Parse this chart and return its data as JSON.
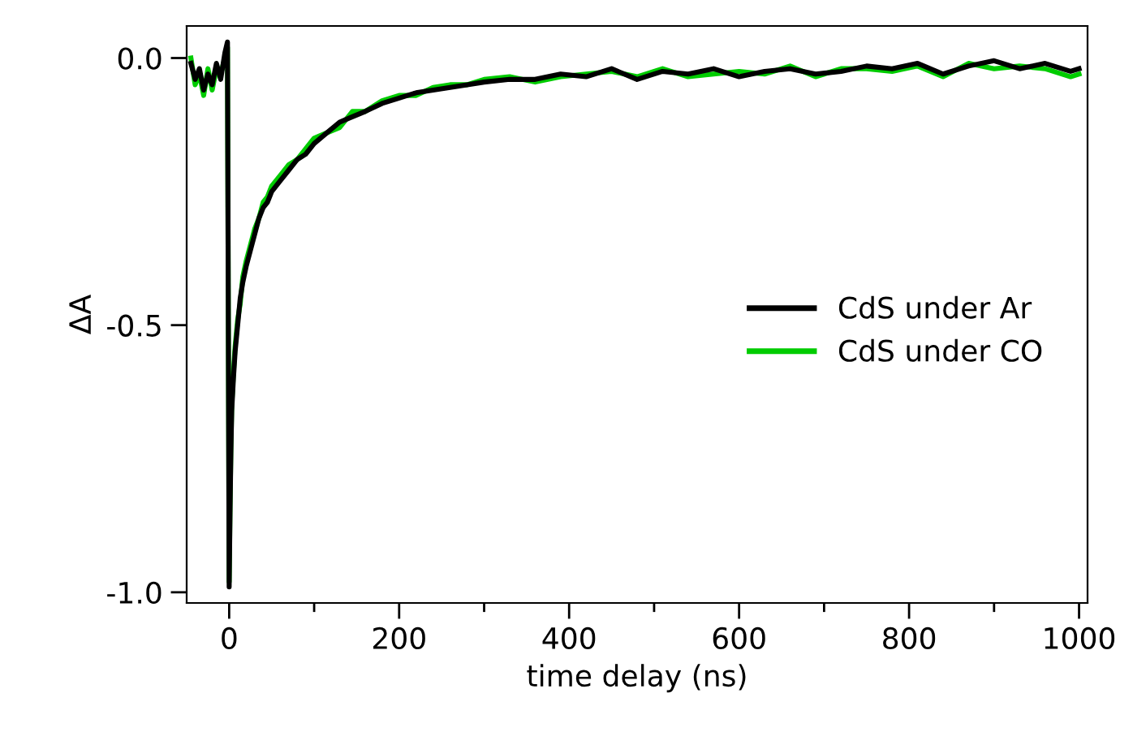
{
  "chart_data": {
    "type": "line",
    "xlabel": "time delay (ns)",
    "ylabel": "ΔA",
    "x": [
      -45,
      -40,
      -35,
      -30,
      -25,
      -20,
      -15,
      -10,
      -5,
      -2,
      0,
      1,
      2,
      3,
      5,
      7,
      10,
      13,
      16,
      20,
      25,
      30,
      35,
      40,
      45,
      50,
      60,
      70,
      80,
      90,
      100,
      115,
      130,
      145,
      160,
      180,
      200,
      220,
      240,
      260,
      280,
      300,
      330,
      360,
      390,
      420,
      450,
      480,
      510,
      540,
      570,
      600,
      630,
      660,
      690,
      720,
      750,
      780,
      810,
      840,
      870,
      900,
      930,
      960,
      990,
      1000
    ],
    "series": [
      {
        "name": "CdS under CO",
        "color": "#00cc00",
        "values": [
          0.0,
          -0.05,
          -0.03,
          -0.07,
          -0.02,
          -0.06,
          -0.02,
          -0.03,
          0.0,
          0.02,
          -0.98,
          -0.84,
          -0.73,
          -0.65,
          -0.59,
          -0.54,
          -0.49,
          -0.46,
          -0.41,
          -0.38,
          -0.35,
          -0.32,
          -0.3,
          -0.27,
          -0.26,
          -0.24,
          -0.22,
          -0.2,
          -0.19,
          -0.17,
          -0.15,
          -0.14,
          -0.13,
          -0.1,
          -0.1,
          -0.08,
          -0.07,
          -0.07,
          -0.055,
          -0.05,
          -0.05,
          -0.04,
          -0.035,
          -0.045,
          -0.035,
          -0.03,
          -0.025,
          -0.035,
          -0.02,
          -0.035,
          -0.03,
          -0.025,
          -0.03,
          -0.015,
          -0.035,
          -0.02,
          -0.02,
          -0.025,
          -0.015,
          -0.035,
          -0.01,
          -0.02,
          -0.015,
          -0.02,
          -0.035,
          -0.03
        ]
      },
      {
        "name": "CdS under Ar",
        "color": "#000000",
        "values": [
          -0.01,
          -0.04,
          -0.02,
          -0.06,
          -0.03,
          -0.05,
          -0.01,
          -0.04,
          0.01,
          0.03,
          -0.99,
          -0.85,
          -0.74,
          -0.66,
          -0.6,
          -0.55,
          -0.5,
          -0.45,
          -0.42,
          -0.39,
          -0.36,
          -0.33,
          -0.3,
          -0.28,
          -0.27,
          -0.25,
          -0.23,
          -0.21,
          -0.19,
          -0.18,
          -0.16,
          -0.14,
          -0.12,
          -0.11,
          -0.1,
          -0.085,
          -0.075,
          -0.065,
          -0.06,
          -0.055,
          -0.05,
          -0.045,
          -0.04,
          -0.04,
          -0.03,
          -0.035,
          -0.02,
          -0.04,
          -0.025,
          -0.03,
          -0.02,
          -0.035,
          -0.025,
          -0.02,
          -0.03,
          -0.025,
          -0.015,
          -0.02,
          -0.01,
          -0.03,
          -0.015,
          -0.005,
          -0.02,
          -0.01,
          -0.025,
          -0.02
        ]
      }
    ],
    "xlim": [
      -50,
      1010
    ],
    "ylim": [
      -1.02,
      0.06
    ],
    "xticks": [
      0,
      {
        "value": 100,
        "label": null
      },
      200,
      {
        "value": 300,
        "label": null
      },
      400,
      {
        "value": 500,
        "label": null
      },
      600,
      {
        "value": 700,
        "label": null
      },
      800,
      {
        "value": 900,
        "label": null
      },
      1000
    ],
    "yticks": [
      {
        "value": -1.0,
        "label": "-1.0"
      },
      {
        "value": -0.5,
        "label": "-0.5"
      },
      {
        "value": 0.0,
        "label": "0.0"
      }
    ],
    "grid": false,
    "legend": "right",
    "marker": "none",
    "line_style": "solid"
  }
}
